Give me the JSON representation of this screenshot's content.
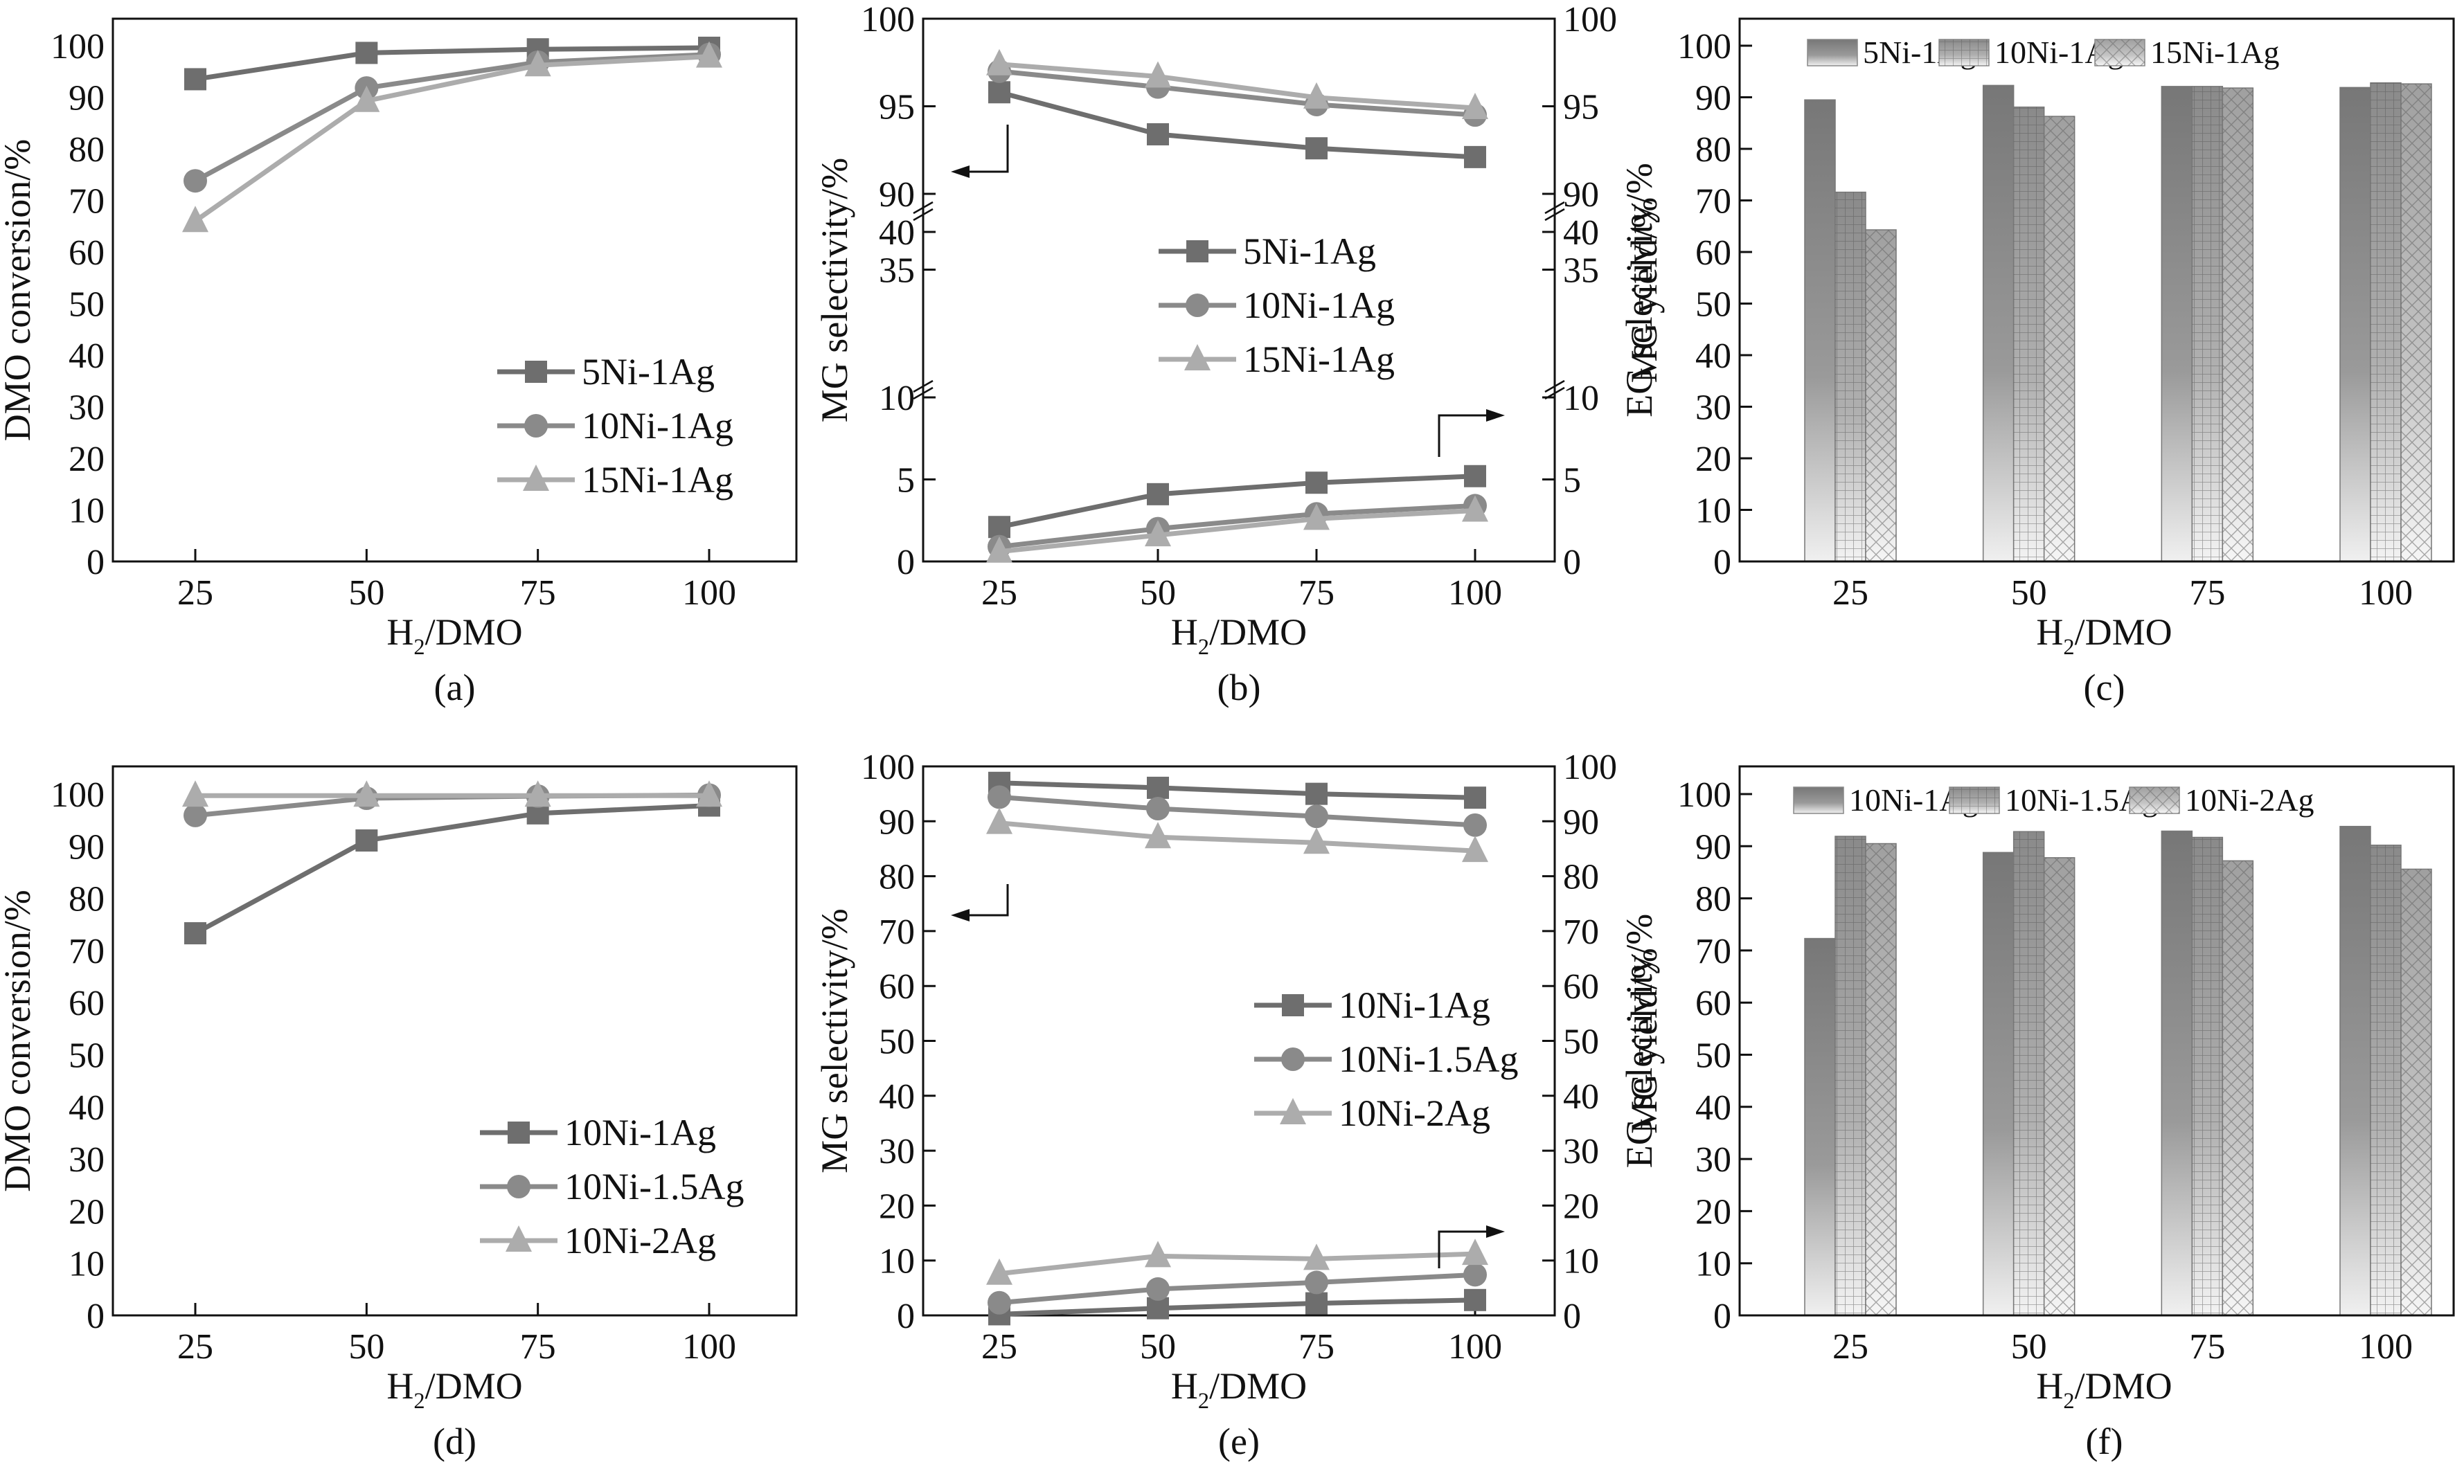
{
  "chart_data": [
    {
      "id": "a",
      "type": "line",
      "panel_label": "(a)",
      "xlabel": "H2/DMO",
      "ylabel": "DMO conversion/%",
      "x": [
        25,
        50,
        75,
        100
      ],
      "xticks": [
        "25",
        "50",
        "75",
        "100"
      ],
      "ylim": [
        0,
        100
      ],
      "yticks": [
        0,
        10,
        20,
        30,
        40,
        50,
        60,
        70,
        80,
        90,
        100
      ],
      "legend_position": "bottom-right",
      "series": [
        {
          "name": "5Ni-1Ag",
          "marker": "square",
          "color": "#6e6e6e",
          "values": [
            93.5,
            98.6,
            99.3,
            99.6
          ]
        },
        {
          "name": "10Ni-1Ag",
          "marker": "circle",
          "color": "#8a8a8a",
          "values": [
            73.8,
            91.8,
            96.8,
            98.3
          ]
        },
        {
          "name": "15Ni-1Ag",
          "marker": "triangle",
          "color": "#acacac",
          "values": [
            66.0,
            89.3,
            96.2,
            97.9
          ]
        }
      ]
    },
    {
      "id": "b",
      "type": "line",
      "panel_label": "(b)",
      "xlabel": "H2/DMO",
      "ylabel": "MG selectivity/%",
      "y2label": "EG selectivity/%",
      "x": [
        25,
        50,
        75,
        100
      ],
      "xticks": [
        "25",
        "50",
        "75",
        "100"
      ],
      "broken_axis": true,
      "y_segments": [
        {
          "range": [
            0,
            10
          ],
          "ticks": [
            0,
            5,
            10
          ]
        },
        {
          "range": [
            30,
            40
          ],
          "ticks": [
            35,
            40
          ]
        },
        {
          "range": [
            90,
            100
          ],
          "ticks": [
            90,
            95,
            100
          ]
        }
      ],
      "legend_position": "center",
      "series": [
        {
          "name": "5Ni-1Ag",
          "marker": "square",
          "color": "#6e6e6e",
          "axis": "left",
          "quantity": "MG selectivity",
          "values": [
            95.8,
            93.4,
            92.6,
            92.1
          ]
        },
        {
          "name": "10Ni-1Ag",
          "marker": "circle",
          "color": "#8a8a8a",
          "axis": "left",
          "quantity": "MG selectivity",
          "values": [
            97.0,
            96.1,
            95.1,
            94.5
          ]
        },
        {
          "name": "15Ni-1Ag",
          "marker": "triangle",
          "color": "#acacac",
          "axis": "left",
          "quantity": "MG selectivity",
          "values": [
            97.4,
            96.7,
            95.5,
            94.9
          ]
        },
        {
          "name": "5Ni-1Ag",
          "marker": "square",
          "color": "#6e6e6e",
          "axis": "right",
          "quantity": "EG selectivity",
          "values": [
            2.1,
            4.1,
            4.8,
            5.2
          ]
        },
        {
          "name": "10Ni-1Ag",
          "marker": "circle",
          "color": "#8a8a8a",
          "axis": "right",
          "quantity": "EG selectivity",
          "values": [
            0.9,
            2.0,
            2.9,
            3.4
          ]
        },
        {
          "name": "15Ni-1Ag",
          "marker": "triangle",
          "color": "#acacac",
          "axis": "right",
          "quantity": "EG selectivity",
          "values": [
            0.6,
            1.6,
            2.6,
            3.1
          ]
        }
      ]
    },
    {
      "id": "c",
      "type": "bar",
      "panel_label": "(c)",
      "xlabel": "H2/DMO",
      "ylabel": "MG yield/%",
      "categories": [
        "25",
        "50",
        "75",
        "100"
      ],
      "ylim": [
        0,
        100
      ],
      "yticks": [
        0,
        10,
        20,
        30,
        40,
        50,
        60,
        70,
        80,
        90,
        100
      ],
      "legend_position": "top",
      "series": [
        {
          "name": "5Ni-1Ag",
          "pattern": "gradient",
          "values": [
            89.5,
            92.3,
            92.1,
            91.9
          ]
        },
        {
          "name": "10Ni-1Ag",
          "pattern": "grid",
          "values": [
            71.6,
            88.1,
            92.1,
            92.8
          ]
        },
        {
          "name": "15Ni-1Ag",
          "pattern": "crosshatch",
          "values": [
            64.3,
            86.3,
            91.8,
            92.6
          ]
        }
      ]
    },
    {
      "id": "d",
      "type": "line",
      "panel_label": "(d)",
      "xlabel": "H2/DMO",
      "ylabel": "DMO conversion/%",
      "x": [
        25,
        50,
        75,
        100
      ],
      "xticks": [
        "25",
        "50",
        "75",
        "100"
      ],
      "ylim": [
        0,
        100
      ],
      "yticks": [
        0,
        10,
        20,
        30,
        40,
        50,
        60,
        70,
        80,
        90,
        100
      ],
      "legend_position": "bottom-right",
      "series": [
        {
          "name": "10Ni-1Ag",
          "marker": "square",
          "color": "#6e6e6e",
          "values": [
            73.3,
            91.1,
            96.3,
            97.8
          ]
        },
        {
          "name": "10Ni-1.5Ag",
          "marker": "circle",
          "color": "#8a8a8a",
          "values": [
            95.9,
            99.2,
            99.6,
            99.8
          ]
        },
        {
          "name": "10Ni-2Ag",
          "marker": "triangle",
          "color": "#acacac",
          "values": [
            99.7,
            99.7,
            99.7,
            99.7
          ]
        }
      ]
    },
    {
      "id": "e",
      "type": "line",
      "panel_label": "(e)",
      "xlabel": "H2/DMO",
      "ylabel": "MG selectivity/%",
      "y2label": "EG selectivity/%",
      "x": [
        25,
        50,
        75,
        100
      ],
      "xticks": [
        "25",
        "50",
        "75",
        "100"
      ],
      "ylim": [
        0,
        100
      ],
      "yticks": [
        0,
        10,
        20,
        30,
        40,
        50,
        60,
        70,
        80,
        90,
        100
      ],
      "legend_position": "center-right",
      "series": [
        {
          "name": "10Ni-1Ag",
          "marker": "square",
          "color": "#6e6e6e",
          "axis": "left",
          "quantity": "MG selectivity",
          "values": [
            97.0,
            96.1,
            95.0,
            94.3
          ]
        },
        {
          "name": "10Ni-1.5Ag",
          "marker": "circle",
          "color": "#8a8a8a",
          "axis": "left",
          "quantity": "MG selectivity",
          "values": [
            94.4,
            92.3,
            90.9,
            89.3
          ]
        },
        {
          "name": "10Ni-2Ag",
          "marker": "triangle",
          "color": "#acacac",
          "axis": "left",
          "quantity": "MG selectivity",
          "values": [
            89.7,
            87.1,
            86.1,
            84.6
          ]
        },
        {
          "name": "10Ni-1Ag",
          "marker": "square",
          "color": "#6e6e6e",
          "axis": "right",
          "quantity": "EG selectivity",
          "values": [
            0.2,
            1.3,
            2.2,
            2.8
          ]
        },
        {
          "name": "10Ni-1.5Ag",
          "marker": "circle",
          "color": "#8a8a8a",
          "axis": "right",
          "quantity": "EG selectivity",
          "values": [
            2.3,
            4.8,
            6.0,
            7.4
          ]
        },
        {
          "name": "10Ni-2Ag",
          "marker": "triangle",
          "color": "#acacac",
          "axis": "right",
          "quantity": "EG selectivity",
          "values": [
            7.6,
            10.8,
            10.3,
            11.2
          ]
        }
      ]
    },
    {
      "id": "f",
      "type": "bar",
      "panel_label": "(f)",
      "xlabel": "H2/DMO",
      "ylabel": "MG yield/%",
      "categories": [
        "25",
        "50",
        "75",
        "100"
      ],
      "ylim": [
        0,
        100
      ],
      "yticks": [
        0,
        10,
        20,
        30,
        40,
        50,
        60,
        70,
        80,
        90,
        100
      ],
      "legend_position": "top",
      "series": [
        {
          "name": "10Ni-1Ag",
          "pattern": "gradient",
          "values": [
            72.3,
            88.8,
            92.9,
            93.8
          ]
        },
        {
          "name": "10Ni-1.5Ag",
          "pattern": "grid",
          "values": [
            91.9,
            92.8,
            91.7,
            90.2
          ]
        },
        {
          "name": "10Ni-2Ag",
          "pattern": "crosshatch",
          "values": [
            90.5,
            87.8,
            87.2,
            85.6
          ]
        }
      ]
    }
  ]
}
